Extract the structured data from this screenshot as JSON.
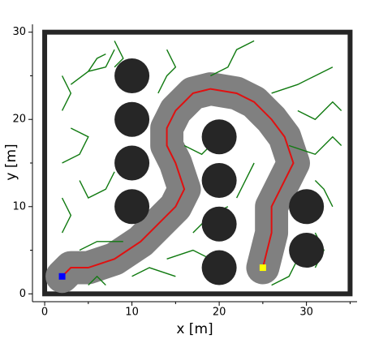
{
  "chart_data": {
    "type": "path-planning",
    "xlabel": "x [m]",
    "ylabel": "y [m]",
    "xlim": [
      -1.4,
      35.8
    ],
    "ylim": [
      -0.9,
      30.9
    ],
    "xticks": [
      0,
      10,
      20,
      30
    ],
    "yticks": [
      0,
      10,
      20,
      30
    ],
    "xminor": [
      5,
      15,
      25,
      35
    ],
    "yminor": [
      5,
      15,
      25
    ],
    "boundary": {
      "x": [
        0,
        35
      ],
      "y": [
        0,
        30
      ]
    },
    "boundary_color": "#262626",
    "obstacle_color": "#262626",
    "obstacles": [
      {
        "x": 10,
        "y": 25,
        "r": 2
      },
      {
        "x": 10,
        "y": 20,
        "r": 2
      },
      {
        "x": 10,
        "y": 15,
        "r": 2
      },
      {
        "x": 10,
        "y": 10,
        "r": 2
      },
      {
        "x": 20,
        "y": 18,
        "r": 2
      },
      {
        "x": 20,
        "y": 13,
        "r": 2
      },
      {
        "x": 20,
        "y": 8,
        "r": 2
      },
      {
        "x": 20,
        "y": 3,
        "r": 2
      },
      {
        "x": 30,
        "y": 10,
        "r": 2
      },
      {
        "x": 30,
        "y": 5,
        "r": 2
      }
    ],
    "tree_color": "#107a10",
    "tree": [
      {
        "x": [
          3,
          5,
          7,
          8
        ],
        "y": [
          24,
          25.5,
          26,
          28
        ]
      },
      {
        "x": [
          5,
          6,
          7
        ],
        "y": [
          25.5,
          27,
          27.5
        ]
      },
      {
        "x": [
          2,
          3,
          2
        ],
        "y": [
          21,
          23,
          25
        ]
      },
      {
        "x": [
          13,
          14,
          15,
          14
        ],
        "y": [
          23,
          25,
          26,
          28
        ]
      },
      {
        "x": [
          8,
          9,
          8
        ],
        "y": [
          26,
          27,
          29
        ]
      },
      {
        "x": [
          19,
          21,
          22,
          24
        ],
        "y": [
          25,
          26,
          28,
          29
        ]
      },
      {
        "x": [
          26,
          29,
          31,
          33
        ],
        "y": [
          23,
          24,
          25,
          26
        ]
      },
      {
        "x": [
          29,
          31,
          33,
          34
        ],
        "y": [
          21,
          20,
          22,
          21
        ]
      },
      {
        "x": [
          28,
          31,
          33,
          34
        ],
        "y": [
          17,
          16,
          18,
          17
        ]
      },
      {
        "x": [
          31,
          32,
          33
        ],
        "y": [
          13,
          12,
          10
        ]
      },
      {
        "x": [
          31,
          32,
          31
        ],
        "y": [
          7,
          5,
          3
        ]
      },
      {
        "x": [
          2,
          4,
          5,
          3
        ],
        "y": [
          15,
          16,
          18,
          19
        ]
      },
      {
        "x": [
          4,
          5,
          7,
          8
        ],
        "y": [
          13,
          11,
          12,
          14
        ]
      },
      {
        "x": [
          2,
          3,
          2
        ],
        "y": [
          11,
          9,
          7
        ]
      },
      {
        "x": [
          4,
          6,
          9
        ],
        "y": [
          5,
          6,
          6
        ]
      },
      {
        "x": [
          17,
          19,
          21
        ],
        "y": [
          7,
          9,
          10
        ]
      },
      {
        "x": [
          14,
          17,
          19
        ],
        "y": [
          4,
          5,
          4
        ]
      },
      {
        "x": [
          24,
          23,
          22
        ],
        "y": [
          15,
          13,
          11
        ]
      },
      {
        "x": [
          16,
          18,
          19
        ],
        "y": [
          17,
          16,
          17
        ]
      },
      {
        "x": [
          10,
          12,
          15
        ],
        "y": [
          2,
          3,
          2
        ]
      },
      {
        "x": [
          26,
          28,
          29
        ],
        "y": [
          1,
          2,
          4
        ]
      },
      {
        "x": [
          5,
          6,
          7
        ],
        "y": [
          1,
          2,
          1
        ]
      }
    ],
    "band_color": "#808080",
    "path_color": "#e01010",
    "path": {
      "x": [
        2,
        3,
        5,
        8,
        11,
        13,
        15,
        16,
        15,
        14,
        14,
        15,
        17,
        19,
        22,
        24,
        26,
        27.5,
        28.5,
        27,
        26,
        26,
        25.5,
        25
      ],
      "y": [
        2,
        3,
        3,
        4,
        6,
        8,
        10,
        12,
        15,
        17,
        19,
        21,
        23,
        23.5,
        23,
        22,
        20,
        18,
        15,
        12,
        10,
        7,
        5,
        3
      ]
    },
    "start": {
      "x": 2,
      "y": 2,
      "color": "#0000ff"
    },
    "goal": {
      "x": 25,
      "y": 3,
      "color": "#ffff00"
    }
  }
}
